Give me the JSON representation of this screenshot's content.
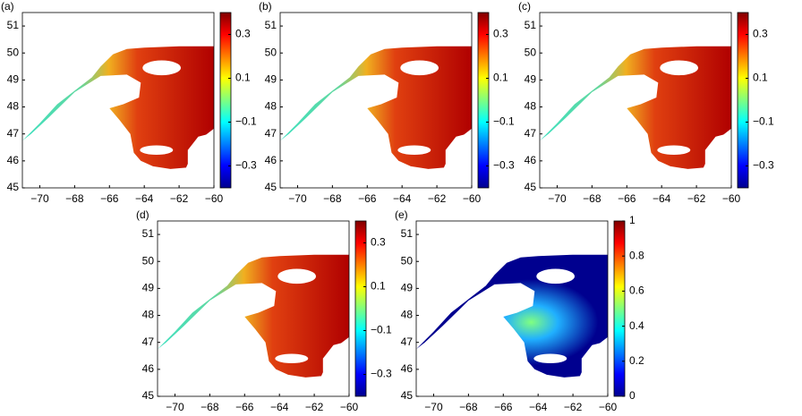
{
  "chart_data": [
    {
      "type": "map",
      "label": "(a)",
      "colormap": "jet",
      "xlim": [
        -71,
        -60
      ],
      "xticks": [
        {
          "value": -70,
          "label": "−70"
        },
        {
          "value": -68,
          "label": "−68"
        },
        {
          "value": -66,
          "label": "−66"
        },
        {
          "value": -64,
          "label": "−64"
        },
        {
          "value": -62,
          "label": "−62"
        },
        {
          "value": -60,
          "label": "−60"
        }
      ],
      "ylim": [
        45,
        51.5
      ],
      "yticks": [
        45,
        46,
        47,
        48,
        49,
        50,
        51
      ],
      "colorbar": {
        "lim": [
          -0.4,
          0.4
        ],
        "ticks": [
          {
            "value": 0.3,
            "label": "0.3"
          },
          {
            "value": 0.1,
            "label": "0.1"
          },
          {
            "value": -0.1,
            "label": "−0.1"
          },
          {
            "value": -0.3,
            "label": "−0.3"
          }
        ]
      }
    },
    {
      "type": "map",
      "label": "(b)",
      "colormap": "jet",
      "xlim": [
        -71,
        -60
      ],
      "xticks": [
        {
          "value": -70,
          "label": "−70"
        },
        {
          "value": -68,
          "label": "−68"
        },
        {
          "value": -66,
          "label": "−66"
        },
        {
          "value": -64,
          "label": "−64"
        },
        {
          "value": -62,
          "label": "−62"
        },
        {
          "value": -60,
          "label": "−60"
        }
      ],
      "ylim": [
        45,
        51.5
      ],
      "yticks": [
        45,
        46,
        47,
        48,
        49,
        50,
        51
      ],
      "colorbar": {
        "lim": [
          -0.4,
          0.4
        ],
        "ticks": [
          {
            "value": 0.3,
            "label": "0.3"
          },
          {
            "value": 0.1,
            "label": "0.1"
          },
          {
            "value": -0.1,
            "label": "−0.1"
          },
          {
            "value": -0.3,
            "label": "−0.3"
          }
        ]
      }
    },
    {
      "type": "map",
      "label": "(c)",
      "colormap": "jet",
      "xlim": [
        -71,
        -60
      ],
      "xticks": [
        {
          "value": -70,
          "label": "−70"
        },
        {
          "value": -68,
          "label": "−68"
        },
        {
          "value": -66,
          "label": "−66"
        },
        {
          "value": -64,
          "label": "−64"
        },
        {
          "value": -62,
          "label": "−62"
        },
        {
          "value": -60,
          "label": "−60"
        }
      ],
      "ylim": [
        45,
        51.5
      ],
      "yticks": [
        45,
        46,
        47,
        48,
        49,
        50,
        51
      ],
      "colorbar": {
        "lim": [
          -0.4,
          0.4
        ],
        "ticks": [
          {
            "value": 0.3,
            "label": "0.3"
          },
          {
            "value": 0.1,
            "label": "0.1"
          },
          {
            "value": -0.1,
            "label": "−0.1"
          },
          {
            "value": -0.3,
            "label": "−0.3"
          }
        ]
      }
    },
    {
      "type": "map",
      "label": "(d)",
      "colormap": "jet",
      "xlim": [
        -71,
        -60
      ],
      "xticks": [
        {
          "value": -70,
          "label": "−70"
        },
        {
          "value": -68,
          "label": "−68"
        },
        {
          "value": -66,
          "label": "−66"
        },
        {
          "value": -64,
          "label": "−64"
        },
        {
          "value": -62,
          "label": "−62"
        },
        {
          "value": -60,
          "label": "−60"
        }
      ],
      "ylim": [
        45,
        51.5
      ],
      "yticks": [
        45,
        46,
        47,
        48,
        49,
        50,
        51
      ],
      "colorbar": {
        "lim": [
          -0.4,
          0.4
        ],
        "ticks": [
          {
            "value": 0.3,
            "label": "0.3"
          },
          {
            "value": 0.1,
            "label": "0.1"
          },
          {
            "value": -0.1,
            "label": "−0.1"
          },
          {
            "value": -0.3,
            "label": "−0.3"
          }
        ]
      }
    },
    {
      "type": "map",
      "label": "(e)",
      "colormap": "jet",
      "xlim": [
        -71,
        -60
      ],
      "xticks": [
        {
          "value": -70,
          "label": "−70"
        },
        {
          "value": -68,
          "label": "−68"
        },
        {
          "value": -66,
          "label": "−66"
        },
        {
          "value": -64,
          "label": "−64"
        },
        {
          "value": -62,
          "label": "−62"
        },
        {
          "value": -60,
          "label": "−60"
        }
      ],
      "ylim": [
        45,
        51.5
      ],
      "yticks": [
        45,
        46,
        47,
        48,
        49,
        50,
        51
      ],
      "colorbar": {
        "lim": [
          0,
          1
        ],
        "ticks": [
          0,
          0.2,
          0.4,
          0.6,
          0.8,
          1
        ]
      }
    }
  ]
}
